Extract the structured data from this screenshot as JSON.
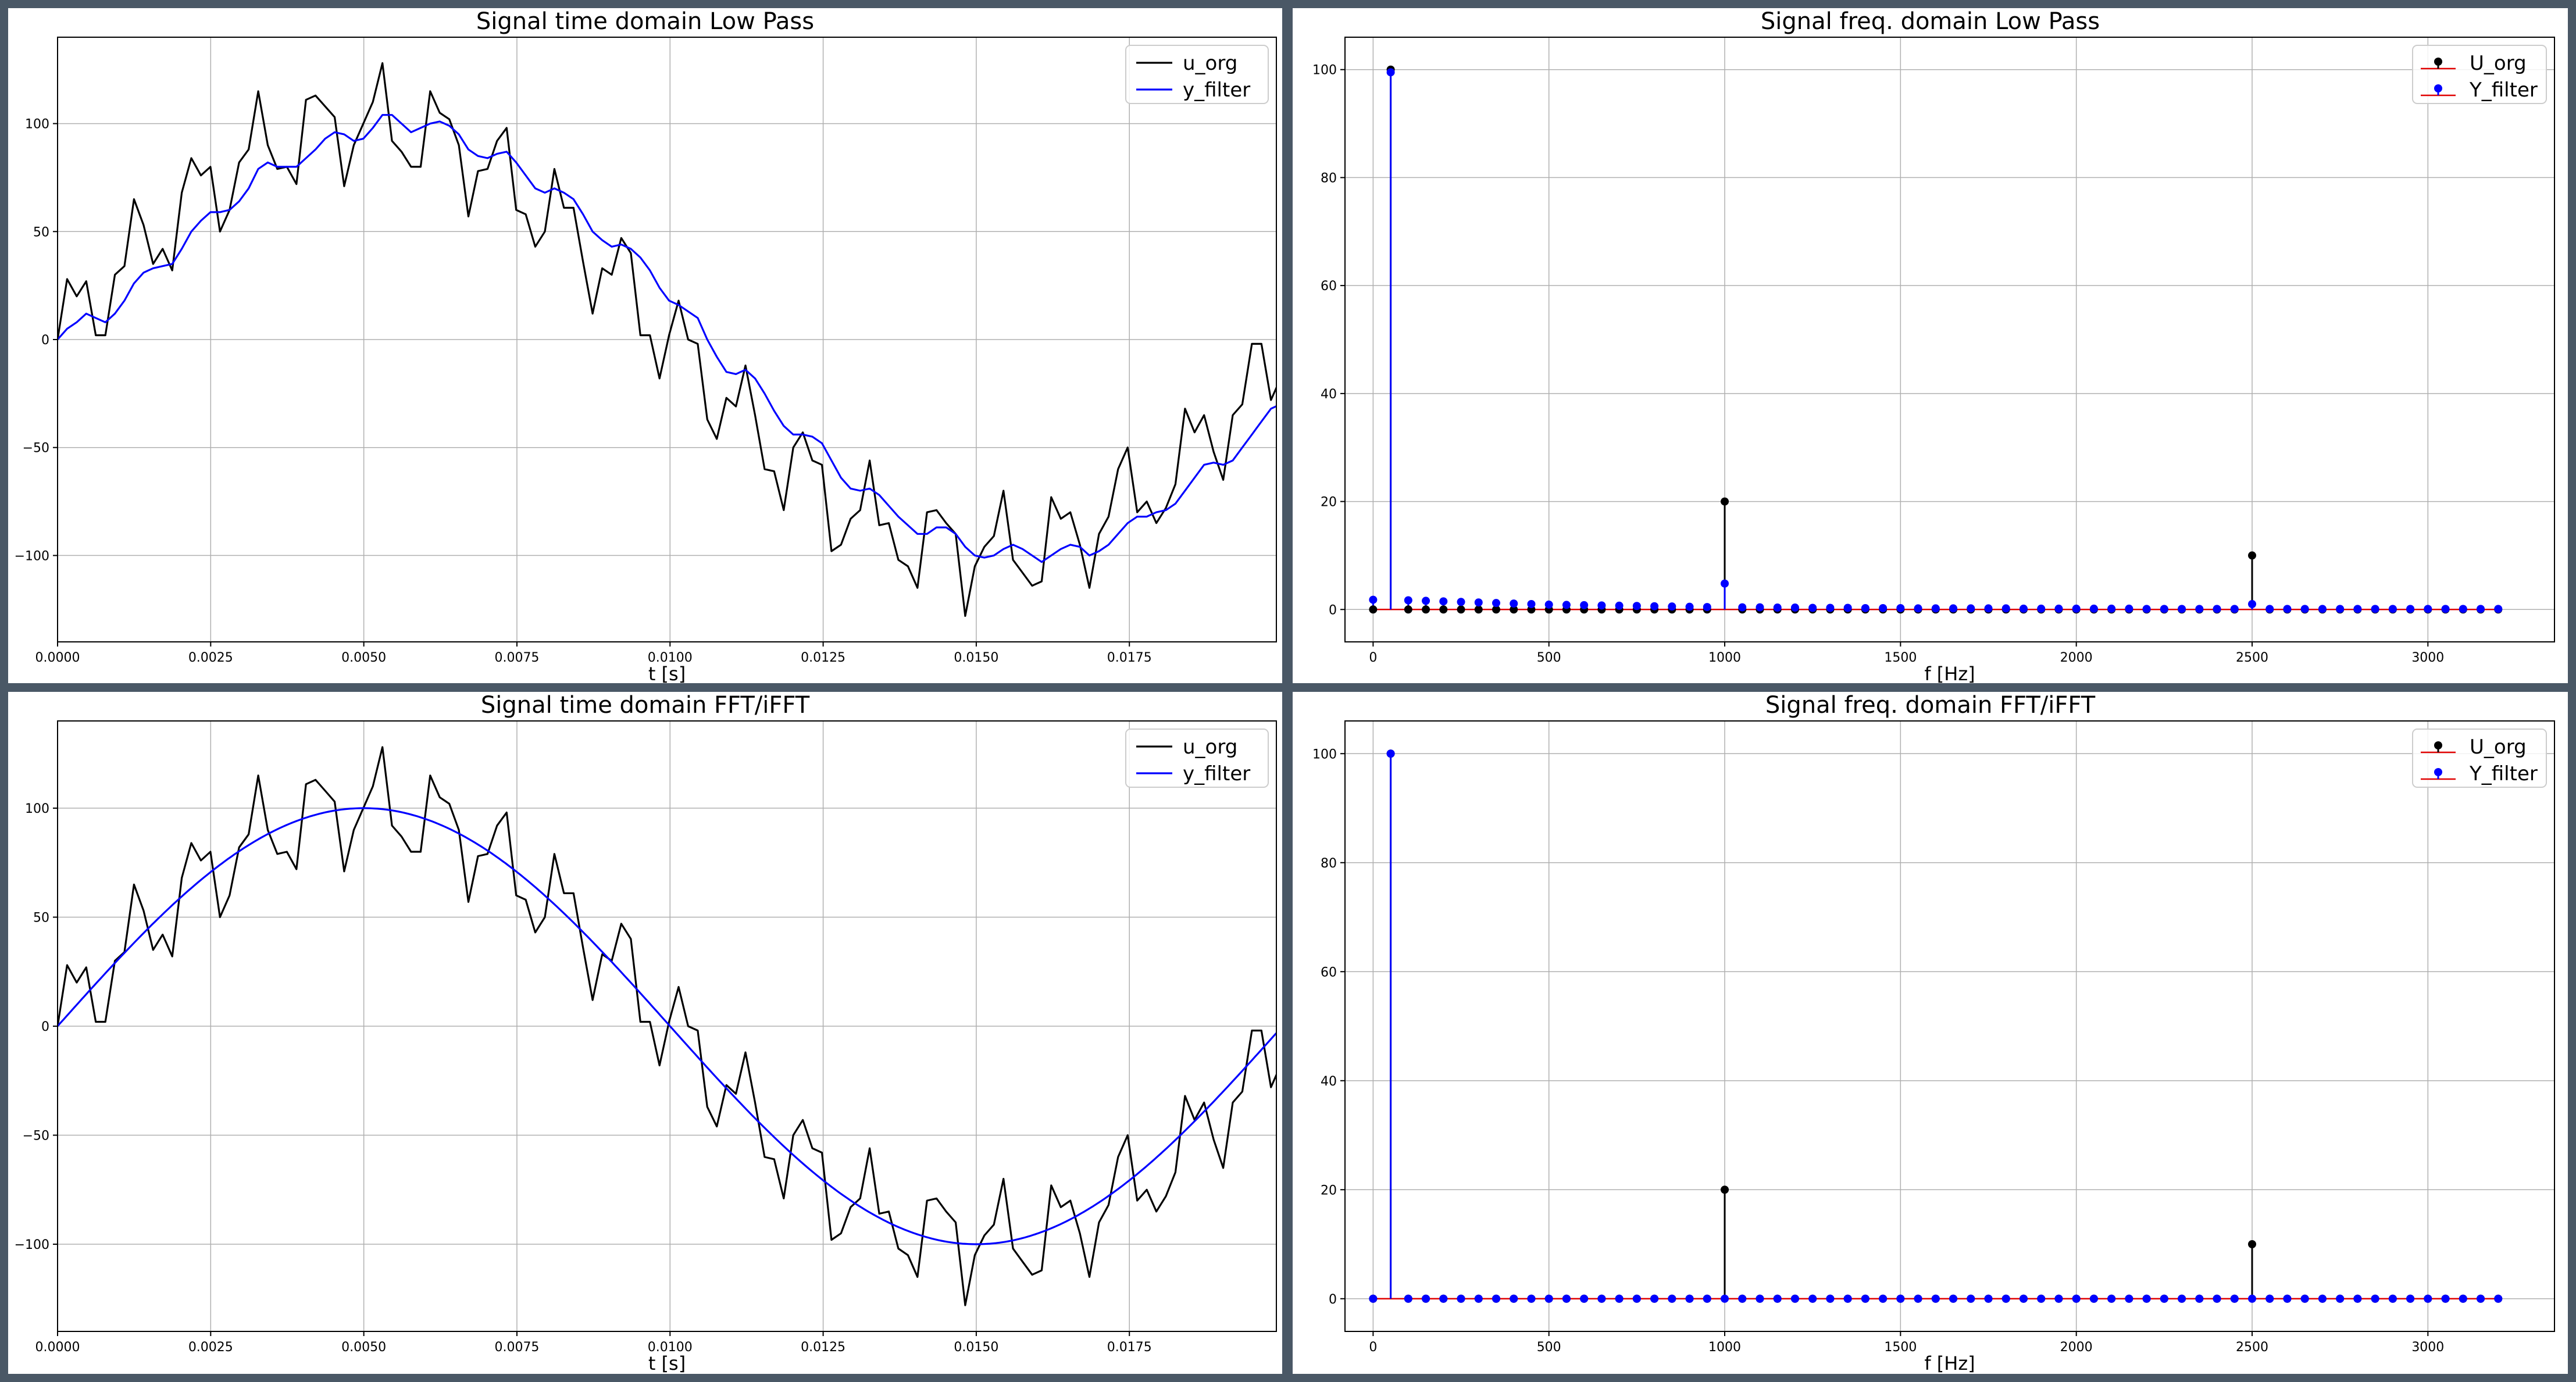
{
  "colors": {
    "u_org": "#000000",
    "y_filter": "#0000ff",
    "baseline": "#e00000",
    "grid": "#b0b0b0",
    "frame": "#4a5866"
  },
  "chart_data": [
    {
      "type": "line",
      "title": "Signal time domain Low Pass",
      "xlabel": "t [s]",
      "ylabel": "",
      "xlim": [
        0,
        0.0199
      ],
      "ylim": [
        -140,
        140
      ],
      "xticks": [
        "0.0000",
        "0.0025",
        "0.0050",
        "0.0075",
        "0.0100",
        "0.0125",
        "0.0150",
        "0.0175"
      ],
      "yticks": [
        "100",
        "50",
        "0",
        "−50",
        "−100"
      ],
      "grid": true,
      "legend": "top-right",
      "series": [
        {
          "name": "u_org",
          "dt": 0.000156,
          "values": [
            0,
            28,
            20,
            27,
            2,
            2,
            30,
            34,
            65,
            53,
            35,
            42,
            32,
            68,
            84,
            76,
            80,
            50,
            60,
            82,
            88,
            115,
            90,
            79,
            80,
            72,
            111,
            113,
            108,
            103,
            71,
            90,
            100,
            110,
            128,
            92,
            87,
            80,
            80,
            115,
            105,
            102,
            90,
            57,
            78,
            79,
            92,
            98,
            60,
            58,
            43,
            50,
            79,
            61,
            61,
            36,
            12,
            33,
            30,
            47,
            40,
            2,
            2,
            -18,
            2,
            18,
            0,
            -2,
            -37,
            -46,
            -27,
            -31,
            -12,
            -35,
            -60,
            -61,
            -79,
            -50,
            -43,
            -56,
            -58,
            -98,
            -95,
            -83,
            -79,
            -56,
            -86,
            -85,
            -102,
            -105,
            -115,
            -80,
            -79,
            -85,
            -90,
            -128,
            -105,
            -96,
            -91,
            -70,
            -102,
            -108,
            -114,
            -112,
            -73,
            -83,
            -80,
            -95,
            -115,
            -90,
            -82,
            -60,
            -50,
            -80,
            -75,
            -85,
            -78,
            -67,
            -32,
            -43,
            -35,
            -52,
            -65,
            -35,
            -30,
            -2,
            -2,
            -28,
            -18,
            -28
          ]
        },
        {
          "name": "y_filter",
          "dt": 0.000156,
          "values": [
            0,
            5,
            8,
            12,
            10,
            8,
            12,
            18,
            26,
            31,
            33,
            34,
            35,
            42,
            50,
            55,
            59,
            59,
            60,
            64,
            70,
            79,
            82,
            80,
            80,
            80,
            84,
            88,
            93,
            96,
            95,
            92,
            93,
            98,
            104,
            104,
            100,
            96,
            98,
            100,
            101,
            99,
            95,
            88,
            85,
            84,
            86,
            87,
            82,
            76,
            70,
            68,
            70,
            68,
            65,
            58,
            50,
            46,
            43,
            44,
            42,
            38,
            32,
            24,
            18,
            16,
            13,
            10,
            0,
            -8,
            -15,
            -16,
            -14,
            -18,
            -25,
            -33,
            -40,
            -44,
            -44,
            -45,
            -48,
            -56,
            -64,
            -69,
            -70,
            -69,
            -72,
            -77,
            -82,
            -86,
            -90,
            -90,
            -87,
            -87,
            -90,
            -96,
            -100,
            -101,
            -100,
            -97,
            -95,
            -97,
            -100,
            -103,
            -100,
            -97,
            -95,
            -96,
            -100,
            -98,
            -95,
            -90,
            -85,
            -82,
            -82,
            -80,
            -79,
            -76,
            -70,
            -64,
            -58,
            -57,
            -58,
            -56,
            -50,
            -44,
            -38,
            -32,
            -30,
            -28
          ]
        }
      ]
    },
    {
      "type": "scatter",
      "title": "Signal freq. domain Low Pass",
      "xlabel": "f [Hz]",
      "ylabel": "",
      "xlim": [
        -80,
        3360
      ],
      "ylim": [
        -6,
        106
      ],
      "xticks": [
        0,
        500,
        1000,
        1500,
        2000,
        2500,
        3000
      ],
      "yticks": [
        0,
        20,
        40,
        60,
        80,
        100
      ],
      "grid": true,
      "legend": "top-right",
      "series": [
        {
          "name": "U_org",
          "x": [
            0,
            50,
            100,
            150,
            200,
            250,
            300,
            350,
            400,
            450,
            500,
            550,
            600,
            650,
            700,
            750,
            800,
            850,
            900,
            950,
            1000,
            1050,
            1100,
            1150,
            1200,
            1250,
            1300,
            1350,
            1400,
            1450,
            1500,
            1550,
            1600,
            1650,
            1700,
            1750,
            1800,
            1850,
            1900,
            1950,
            2000,
            2050,
            2100,
            2150,
            2200,
            2250,
            2300,
            2350,
            2400,
            2450,
            2500,
            2550,
            2600,
            2650,
            2700,
            2750,
            2800,
            2850,
            2900,
            2950,
            3000,
            3050,
            3100,
            3150,
            3200
          ],
          "values": [
            0,
            100,
            0,
            0,
            0,
            0,
            0,
            0,
            0,
            0,
            0,
            0,
            0,
            0,
            0,
            0,
            0,
            0,
            0,
            0,
            20,
            0,
            0,
            0,
            0,
            0,
            0,
            0,
            0,
            0,
            0,
            0,
            0,
            0,
            0,
            0,
            0,
            0,
            0,
            0,
            0,
            0,
            0,
            0,
            0,
            0,
            0,
            0,
            0,
            0,
            10,
            0,
            0,
            0,
            0,
            0,
            0,
            0,
            0,
            0,
            0,
            0,
            0,
            0,
            0
          ]
        },
        {
          "name": "Y_filter",
          "x": [
            0,
            50,
            100,
            150,
            200,
            250,
            300,
            350,
            400,
            450,
            500,
            550,
            600,
            650,
            700,
            750,
            800,
            850,
            900,
            950,
            1000,
            1050,
            1100,
            1150,
            1200,
            1250,
            1300,
            1350,
            1400,
            1450,
            1500,
            1550,
            1600,
            1650,
            1700,
            1750,
            1800,
            1850,
            1900,
            1950,
            2000,
            2050,
            2100,
            2150,
            2200,
            2250,
            2300,
            2350,
            2400,
            2450,
            2500,
            2550,
            2600,
            2650,
            2700,
            2750,
            2800,
            2850,
            2900,
            2950,
            3000,
            3050,
            3100,
            3150,
            3200
          ],
          "values": [
            1.8,
            99.5,
            1.7,
            1.6,
            1.5,
            1.4,
            1.3,
            1.2,
            1.1,
            1.0,
            0.9,
            0.85,
            0.8,
            0.75,
            0.7,
            0.65,
            0.6,
            0.55,
            0.5,
            0.45,
            4.8,
            0.4,
            0.4,
            0.35,
            0.35,
            0.3,
            0.3,
            0.3,
            0.25,
            0.25,
            0.25,
            0.2,
            0.2,
            0.2,
            0.2,
            0.2,
            0.2,
            0.15,
            0.15,
            0.15,
            0.15,
            0.15,
            0.15,
            0.15,
            0.1,
            0.1,
            0.1,
            0.1,
            0.1,
            0.1,
            1.0,
            0.1,
            0.1,
            0.1,
            0.1,
            0.1,
            0.1,
            0.1,
            0.1,
            0.1,
            0.1,
            0.1,
            0.1,
            0.1,
            0.1
          ]
        }
      ]
    },
    {
      "type": "line",
      "title": "Signal time domain FFT/iFFT",
      "xlabel": "t [s]",
      "ylabel": "",
      "xlim": [
        0,
        0.0199
      ],
      "ylim": [
        -140,
        140
      ],
      "xticks": [
        "0.0000",
        "0.0025",
        "0.0050",
        "0.0075",
        "0.0100",
        "0.0125",
        "0.0150",
        "0.0175"
      ],
      "yticks": [
        "100",
        "50",
        "0",
        "−50",
        "−100"
      ],
      "grid": true,
      "legend": "top-right",
      "series": [
        {
          "name": "u_org",
          "dt": 0.000156,
          "values": [
            0,
            28,
            20,
            27,
            2,
            2,
            30,
            34,
            65,
            53,
            35,
            42,
            32,
            68,
            84,
            76,
            80,
            50,
            60,
            82,
            88,
            115,
            90,
            79,
            80,
            72,
            111,
            113,
            108,
            103,
            71,
            90,
            100,
            110,
            128,
            92,
            87,
            80,
            80,
            115,
            105,
            102,
            90,
            57,
            78,
            79,
            92,
            98,
            60,
            58,
            43,
            50,
            79,
            61,
            61,
            36,
            12,
            33,
            30,
            47,
            40,
            2,
            2,
            -18,
            2,
            18,
            0,
            -2,
            -37,
            -46,
            -27,
            -31,
            -12,
            -35,
            -60,
            -61,
            -79,
            -50,
            -43,
            -56,
            -58,
            -98,
            -95,
            -83,
            -79,
            -56,
            -86,
            -85,
            -102,
            -105,
            -115,
            -80,
            -79,
            -85,
            -90,
            -128,
            -105,
            -96,
            -91,
            -70,
            -102,
            -108,
            -114,
            -112,
            -73,
            -83,
            -80,
            -95,
            -115,
            -90,
            -82,
            -60,
            -50,
            -80,
            -75,
            -85,
            -78,
            -67,
            -32,
            -43,
            -35,
            -52,
            -65,
            -35,
            -30,
            -2,
            -2,
            -28,
            -18,
            -28
          ]
        },
        {
          "name": "y_filter",
          "freq": 50,
          "amplitude": 100
        }
      ]
    },
    {
      "type": "scatter",
      "title": "Signal freq. domain FFT/iFFT",
      "xlabel": "f [Hz]",
      "ylabel": "",
      "xlim": [
        -80,
        3360
      ],
      "ylim": [
        -6,
        106
      ],
      "xticks": [
        0,
        500,
        1000,
        1500,
        2000,
        2500,
        3000
      ],
      "yticks": [
        0,
        20,
        40,
        60,
        80,
        100
      ],
      "grid": true,
      "legend": "top-right",
      "series": [
        {
          "name": "U_org",
          "x": [
            0,
            50,
            100,
            150,
            200,
            250,
            300,
            350,
            400,
            450,
            500,
            550,
            600,
            650,
            700,
            750,
            800,
            850,
            900,
            950,
            1000,
            1050,
            1100,
            1150,
            1200,
            1250,
            1300,
            1350,
            1400,
            1450,
            1500,
            1550,
            1600,
            1650,
            1700,
            1750,
            1800,
            1850,
            1900,
            1950,
            2000,
            2050,
            2100,
            2150,
            2200,
            2250,
            2300,
            2350,
            2400,
            2450,
            2500,
            2550,
            2600,
            2650,
            2700,
            2750,
            2800,
            2850,
            2900,
            2950,
            3000,
            3050,
            3100,
            3150,
            3200
          ],
          "values": [
            0,
            100,
            0,
            0,
            0,
            0,
            0,
            0,
            0,
            0,
            0,
            0,
            0,
            0,
            0,
            0,
            0,
            0,
            0,
            0,
            20,
            0,
            0,
            0,
            0,
            0,
            0,
            0,
            0,
            0,
            0,
            0,
            0,
            0,
            0,
            0,
            0,
            0,
            0,
            0,
            0,
            0,
            0,
            0,
            0,
            0,
            0,
            0,
            0,
            0,
            10,
            0,
            0,
            0,
            0,
            0,
            0,
            0,
            0,
            0,
            0,
            0,
            0,
            0,
            0
          ]
        },
        {
          "name": "Y_filter",
          "x": [
            0,
            50,
            100,
            150,
            200,
            250,
            300,
            350,
            400,
            450,
            500,
            550,
            600,
            650,
            700,
            750,
            800,
            850,
            900,
            950,
            1000,
            1050,
            1100,
            1150,
            1200,
            1250,
            1300,
            1350,
            1400,
            1450,
            1500,
            1550,
            1600,
            1650,
            1700,
            1750,
            1800,
            1850,
            1900,
            1950,
            2000,
            2050,
            2100,
            2150,
            2200,
            2250,
            2300,
            2350,
            2400,
            2450,
            2500,
            2550,
            2600,
            2650,
            2700,
            2750,
            2800,
            2850,
            2900,
            2950,
            3000,
            3050,
            3100,
            3150,
            3200
          ],
          "values": [
            0,
            100,
            0,
            0,
            0,
            0,
            0,
            0,
            0,
            0,
            0,
            0,
            0,
            0,
            0,
            0,
            0,
            0,
            0,
            0,
            0,
            0,
            0,
            0,
            0,
            0,
            0,
            0,
            0,
            0,
            0,
            0,
            0,
            0,
            0,
            0,
            0,
            0,
            0,
            0,
            0,
            0,
            0,
            0,
            0,
            0,
            0,
            0,
            0,
            0,
            0,
            0,
            0,
            0,
            0,
            0,
            0,
            0,
            0,
            0,
            0,
            0,
            0,
            0,
            0
          ]
        }
      ]
    }
  ]
}
